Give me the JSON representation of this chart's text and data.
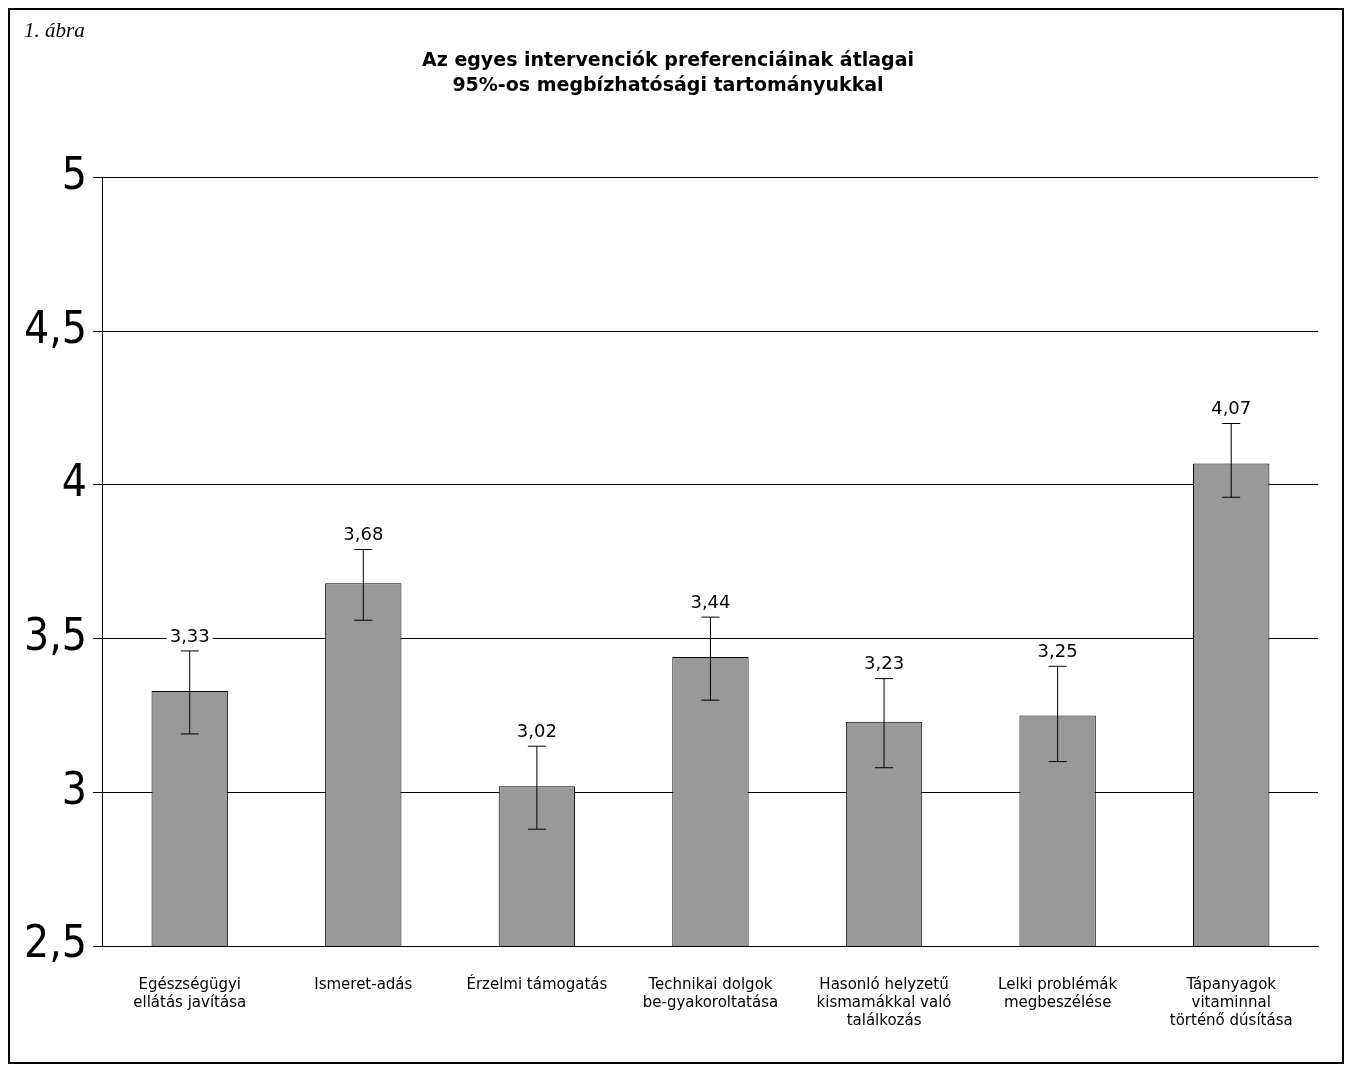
{
  "chart_data": {
    "type": "bar",
    "title": "Az egyes intervenciók preferenciáinak átlagai",
    "subtitle": "95%-os megbízhatósági tartományukkal",
    "annotations": [
      "1. ábra"
    ],
    "categories": [
      "Egészségügyi ellátás javítása",
      "Ismeret-adás",
      "Érzelmi támogatás",
      "Technikai dolgok be-gyakoroltatása",
      "Hasonló helyzetű kismamákkal való találkozás",
      "Lelki problémák megbeszélése",
      "Tápanyagok vitaminnal történő dúsítása"
    ],
    "values": [
      3.33,
      3.68,
      3.02,
      3.44,
      3.23,
      3.25,
      4.07
    ],
    "errors": [
      [
        3.19,
        3.46
      ],
      [
        3.56,
        3.79
      ],
      [
        2.88,
        3.15
      ],
      [
        3.3,
        3.57
      ],
      [
        3.08,
        3.37
      ],
      [
        3.1,
        3.41
      ],
      [
        3.96,
        4.2
      ]
    ],
    "value_labels": [
      "3,33",
      "3,68",
      "3,02",
      "3,44",
      "3,23",
      "3,25",
      "4,07"
    ],
    "color": "#999999",
    "ylim": [
      2.5,
      5
    ],
    "yticks": [
      {
        "value": 2.5,
        "label": "2,5"
      },
      3,
      {
        "value": 3.5,
        "label": "3,5"
      },
      4,
      {
        "value": 4.5,
        "label": "4,5"
      },
      5
    ],
    "grid": "y",
    "legend": false
  }
}
